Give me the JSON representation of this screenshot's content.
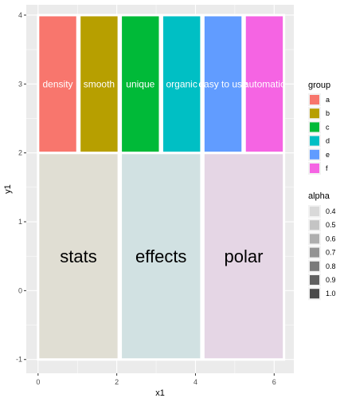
{
  "chart_data": {
    "type": "bar",
    "xlabel": "x1",
    "ylabel": "y1",
    "xlim": [
      -0.3,
      6.5
    ],
    "ylim": [
      -1.2,
      4.15
    ],
    "x_ticks": [
      0,
      2,
      4,
      6
    ],
    "y_ticks": [
      -1,
      0,
      1,
      2,
      3,
      4
    ],
    "grid": true,
    "background_color": "#ebebeb",
    "tile_border_color": "#ffffff",
    "top_tiles": [
      {
        "label": "density",
        "group": "a",
        "xmin": 0,
        "xmax": 1,
        "ymin": 2,
        "ymax": 4,
        "color": "#F8766D"
      },
      {
        "label": "smooth",
        "group": "b",
        "xmin": 1.05,
        "xmax": 2.05,
        "ymin": 2,
        "ymax": 4,
        "color": "#B79F00"
      },
      {
        "label": "unique",
        "group": "c",
        "xmin": 2.1,
        "xmax": 3.1,
        "ymin": 2,
        "ymax": 4,
        "color": "#00BA38"
      },
      {
        "label": "organic",
        "group": "d",
        "xmin": 3.15,
        "xmax": 4.15,
        "ymin": 2,
        "ymax": 4,
        "color": "#00BFC4"
      },
      {
        "label": "easy to use",
        "group": "e",
        "xmin": 4.2,
        "xmax": 5.2,
        "ymin": 2,
        "ymax": 4,
        "color": "#619CFF"
      },
      {
        "label": "automatic",
        "group": "f",
        "xmin": 5.25,
        "xmax": 6.25,
        "ymin": 2,
        "ymax": 4,
        "color": "#F564E3"
      }
    ],
    "bottom_tiles": [
      {
        "label": "stats",
        "xmin": 0,
        "xmax": 2.05,
        "ymin": -1,
        "ymax": 2,
        "color": "#e0ded3"
      },
      {
        "label": "effects",
        "xmin": 2.1,
        "xmax": 4.15,
        "ymin": -1,
        "ymax": 2,
        "color": "#d1e1e2"
      },
      {
        "label": "polar",
        "xmin": 4.2,
        "xmax": 6.25,
        "ymin": -1,
        "ymax": 2,
        "color": "#e5d6e5"
      }
    ],
    "legend_position": "right",
    "legend_group": {
      "title": "group",
      "entries": [
        {
          "label": "a",
          "color": "#F8766D"
        },
        {
          "label": "b",
          "color": "#B79F00"
        },
        {
          "label": "c",
          "color": "#00BA38"
        },
        {
          "label": "d",
          "color": "#00BFC4"
        },
        {
          "label": "e",
          "color": "#619CFF"
        },
        {
          "label": "f",
          "color": "#F564E3"
        }
      ]
    },
    "legend_alpha": {
      "title": "alpha",
      "entries": [
        {
          "label": "0.4",
          "color": "#d9d9d9"
        },
        {
          "label": "0.5",
          "color": "#c4c4c4"
        },
        {
          "label": "0.6",
          "color": "#aeaeae"
        },
        {
          "label": "0.7",
          "color": "#949494"
        },
        {
          "label": "0.8",
          "color": "#7a7a7a"
        },
        {
          "label": "0.9",
          "color": "#606060"
        },
        {
          "label": "1.0",
          "color": "#4a4a4a"
        }
      ]
    }
  }
}
